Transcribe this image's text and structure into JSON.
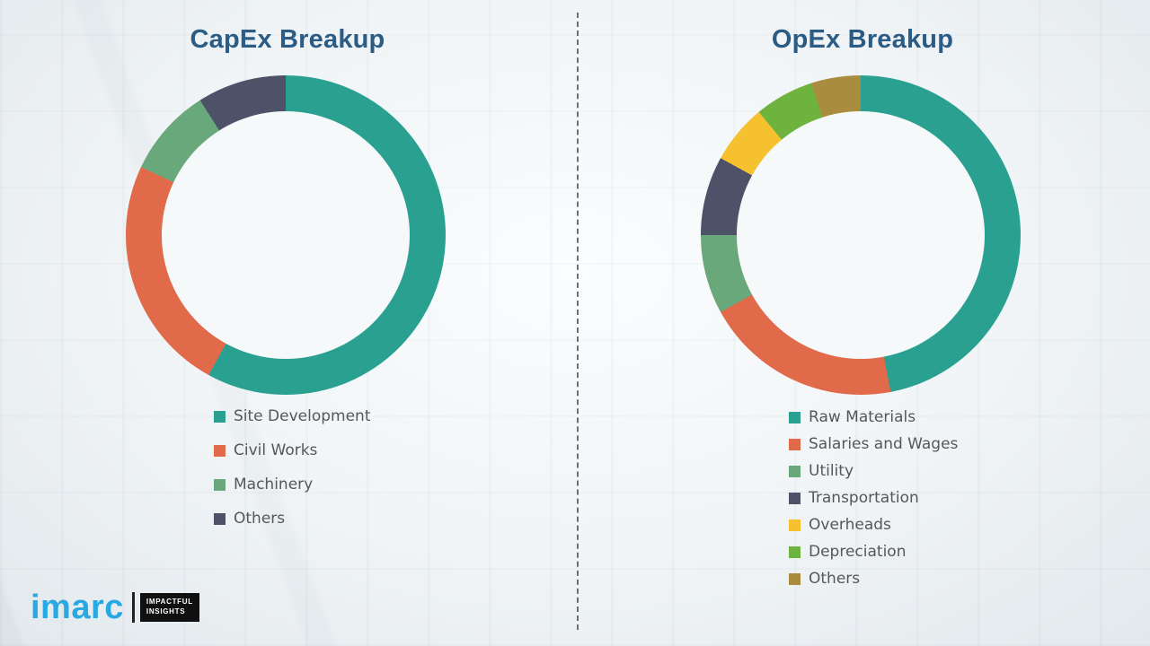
{
  "chart_data": [
    {
      "type": "pie",
      "subtype": "donut",
      "title": "CapEx Breakup",
      "categories": [
        "Site Development",
        "Civil Works",
        "Machinery",
        "Others"
      ],
      "values": [
        58,
        24,
        9,
        9
      ],
      "values_note": "percent, estimated from arc angles (no data labels shown)",
      "colors": [
        "#2aa091",
        "#e16a4b",
        "#69a87b",
        "#4d5269"
      ],
      "legend_position": "below-left",
      "data_labels": false,
      "start_angle_deg": 0,
      "direction": "clockwise"
    },
    {
      "type": "pie",
      "subtype": "donut",
      "title": "OpEx Breakup",
      "categories": [
        "Raw Materials",
        "Salaries and Wages",
        "Utility",
        "Transportation",
        "Overheads",
        "Depreciation",
        "Others"
      ],
      "values": [
        47,
        20,
        8,
        8,
        6,
        6,
        5
      ],
      "values_note": "percent, estimated from arc angles (no data labels shown)",
      "colors": [
        "#2aa091",
        "#e16a4b",
        "#69a87b",
        "#4d5269",
        "#f6c12f",
        "#6fb33f",
        "#aa8c3e"
      ],
      "legend_position": "below-left",
      "data_labels": false,
      "start_angle_deg": 0,
      "direction": "clockwise"
    }
  ],
  "divider": {
    "style": "vertical-dashed",
    "color": "#4d4d4d"
  },
  "logo": {
    "brand": "imarc",
    "brand_color": "#29a9e1",
    "tagline_line1": "IMPACTFUL",
    "tagline_line2": "INSIGHTS"
  },
  "theme": {
    "title_color": "#2b5c85",
    "legend_text_color": "#575757",
    "background": "#f0f3f5"
  }
}
